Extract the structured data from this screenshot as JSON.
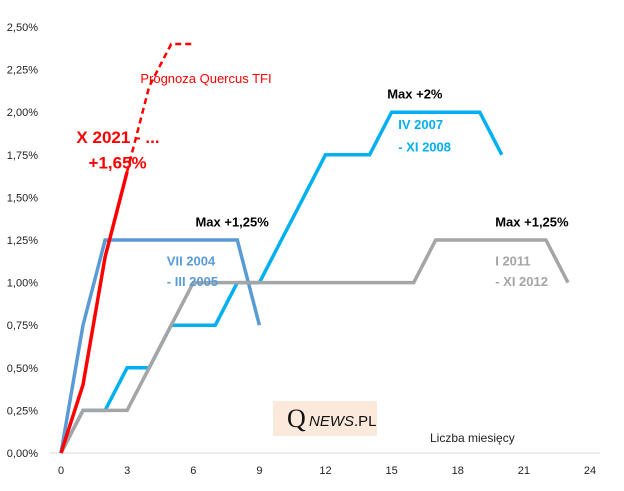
{
  "chart_data": {
    "type": "line",
    "title": "",
    "xlabel": "Liczba miesięcy",
    "ylabel": "",
    "xlim": [
      0,
      24
    ],
    "ylim": [
      0,
      2.5
    ],
    "x_ticks": [
      "0",
      "3",
      "6",
      "9",
      "12",
      "15",
      "18",
      "21",
      "24"
    ],
    "x_tick_values": [
      0,
      3,
      6,
      9,
      12,
      15,
      18,
      21,
      24
    ],
    "y_ticks": [
      "0,00%",
      "0,25%",
      "0,50%",
      "0,75%",
      "1,00%",
      "1,25%",
      "1,50%",
      "1,75%",
      "2,00%",
      "2,25%",
      "2,50%"
    ],
    "y_tick_values": [
      0,
      0.25,
      0.5,
      0.75,
      1.0,
      1.25,
      1.5,
      1.75,
      2.0,
      2.25,
      2.5
    ],
    "grid": false,
    "series": [
      {
        "name": "VII 2004 - III 2005",
        "color": "#5b9bd5",
        "style": "solid",
        "x": [
          0,
          1,
          2,
          3,
          4,
          5,
          6,
          7,
          8,
          9
        ],
        "values": [
          0,
          0.75,
          1.25,
          1.25,
          1.25,
          1.25,
          1.25,
          1.25,
          1.25,
          0.75
        ]
      },
      {
        "name": "IV 2007 - XI 2008",
        "color": "#00b0f0",
        "style": "solid",
        "x": [
          0,
          1,
          2,
          3,
          4,
          5,
          6,
          7,
          8,
          9,
          10,
          11,
          12,
          13,
          14,
          15,
          16,
          17,
          18,
          19,
          20
        ],
        "values": [
          0,
          0.25,
          0.25,
          0.5,
          0.5,
          0.75,
          0.75,
          0.75,
          1.0,
          1.0,
          1.25,
          1.5,
          1.75,
          1.75,
          1.75,
          2.0,
          2.0,
          2.0,
          2.0,
          2.0,
          1.75
        ]
      },
      {
        "name": "I 2011 - XI 2012",
        "color": "#a5a5a5",
        "style": "solid",
        "x": [
          0,
          1,
          2,
          3,
          4,
          5,
          6,
          7,
          8,
          9,
          10,
          11,
          12,
          13,
          14,
          15,
          16,
          17,
          18,
          19,
          20,
          21,
          22,
          23
        ],
        "values": [
          0,
          0.25,
          0.25,
          0.25,
          0.5,
          0.75,
          1.0,
          1.0,
          1.0,
          1.0,
          1.0,
          1.0,
          1.0,
          1.0,
          1.0,
          1.0,
          1.0,
          1.25,
          1.25,
          1.25,
          1.25,
          1.25,
          1.25,
          1.0
        ]
      },
      {
        "name": "X 2021 - ...",
        "color": "#ff0000",
        "style": "solid",
        "x": [
          0,
          1,
          2,
          3
        ],
        "values": [
          0,
          0.4,
          1.15,
          1.65
        ]
      },
      {
        "name": "Prognoza Quercus TFI",
        "color": "#ff0000",
        "style": "dashed",
        "x": [
          3,
          4,
          5,
          6
        ],
        "values": [
          1.65,
          2.15,
          2.4,
          2.4
        ]
      }
    ],
    "annotations": [
      {
        "id": "max-2004",
        "text": "Max +1,25%",
        "color": "#000000",
        "bold": true,
        "x": 6.1,
        "y": 1.33
      },
      {
        "id": "period-2004-a",
        "text": "VII 2004",
        "color": "#5b9bd5",
        "bold": true,
        "x": 4.8,
        "y": 1.1
      },
      {
        "id": "period-2004-b",
        "text": "- III 2005",
        "color": "#5b9bd5",
        "bold": true,
        "x": 4.8,
        "y": 0.98
      },
      {
        "id": "max-2007",
        "text": "Max +2%",
        "color": "#000000",
        "bold": true,
        "x": 14.8,
        "y": 2.08
      },
      {
        "id": "period-2007-a",
        "text": "IV 2007",
        "color": "#00b0f0",
        "bold": true,
        "x": 15.3,
        "y": 1.9
      },
      {
        "id": "period-2007-b",
        "text": "- XI 2008",
        "color": "#00b0f0",
        "bold": true,
        "x": 15.3,
        "y": 1.77
      },
      {
        "id": "max-2011",
        "text": "Max +1,25%",
        "color": "#000000",
        "bold": true,
        "x": 19.7,
        "y": 1.33
      },
      {
        "id": "period-2011-a",
        "text": "I 2011",
        "color": "#a5a5a5",
        "bold": true,
        "x": 19.7,
        "y": 1.1
      },
      {
        "id": "period-2011-b",
        "text": "- XI 2012",
        "color": "#a5a5a5",
        "bold": true,
        "x": 19.7,
        "y": 0.98
      },
      {
        "id": "current-2021-a",
        "text": "X 2021 - ...",
        "color": "#ff0000",
        "bold": true,
        "x": 0.7,
        "y": 1.82,
        "size": "large"
      },
      {
        "id": "current-2021-b",
        "text": "+1,65%",
        "color": "#ff0000",
        "bold": true,
        "x": 1.25,
        "y": 1.67,
        "size": "large"
      },
      {
        "id": "forecast-label",
        "text": "Prognoza Quercus TFI",
        "color": "#ff0000",
        "bold": false,
        "x": 3.6,
        "y": 2.17
      }
    ]
  },
  "logo": {
    "q": "Q",
    "news": "NEWS",
    "pl": ".PL"
  }
}
